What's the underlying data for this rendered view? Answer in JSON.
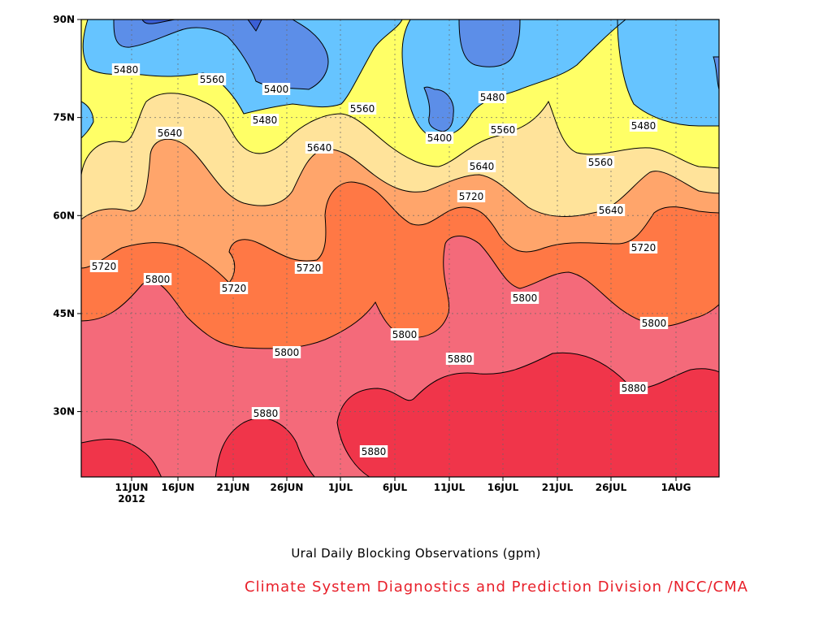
{
  "chart_data": {
    "type": "contour",
    "title": "Ural Daily Blocking Observations (gpm)",
    "credit": "Climate System Diagnostics and Prediction Division /NCC/CMA",
    "y_ticks": [
      "90N",
      "75N",
      "60N",
      "45N",
      "30N"
    ],
    "y_tick_values": [
      90,
      75,
      60,
      45,
      30
    ],
    "ylim": [
      20,
      90
    ],
    "x_ticks": [
      "11JUN",
      "16JUN",
      "21JUN",
      "26JUN",
      "1JUL",
      "6JUL",
      "11JUL",
      "16JUL",
      "21JUL",
      "26JUL",
      "1AUG"
    ],
    "x_year_label": "2012",
    "grid": true,
    "levels": [
      5400,
      5480,
      5560,
      5640,
      5720,
      5800,
      5880
    ],
    "band_colors": {
      "5320": "#3b5fd6",
      "5400": "#5c8ee8",
      "5480": "#66c4ff",
      "5560": "#ffff66",
      "5640": "#ffe39a",
      "5720": "#ffa56b",
      "5800": "#ff7845",
      "5880": "#f46a7a",
      "5960": "#f0354a"
    },
    "contour_labels": [
      {
        "text": "5480"
      },
      {
        "text": "5560"
      },
      {
        "text": "5400"
      },
      {
        "text": "5480"
      },
      {
        "text": "5560"
      },
      {
        "text": "5480"
      },
      {
        "text": "5400"
      },
      {
        "text": "5560"
      },
      {
        "text": "5480"
      },
      {
        "text": "5640"
      },
      {
        "text": "5640"
      },
      {
        "text": "5640"
      },
      {
        "text": "5560"
      },
      {
        "text": "5720"
      },
      {
        "text": "5640"
      },
      {
        "text": "5720"
      },
      {
        "text": "5800"
      },
      {
        "text": "5720"
      },
      {
        "text": "5720"
      },
      {
        "text": "5720"
      },
      {
        "text": "5800"
      },
      {
        "text": "5800"
      },
      {
        "text": "5800"
      },
      {
        "text": "5880"
      },
      {
        "text": "5800"
      },
      {
        "text": "5880"
      },
      {
        "text": "5880"
      },
      {
        "text": "5880"
      }
    ]
  }
}
